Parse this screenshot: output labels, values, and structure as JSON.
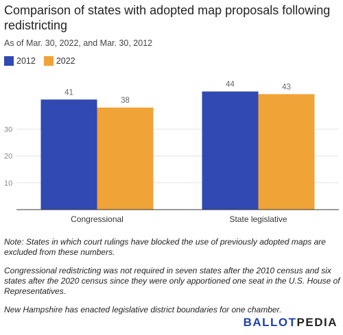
{
  "title": "Comparison of states with adopted map proposals following redistricting",
  "subtitle": "As of Mar. 30, 2022, and Mar. 30, 2012",
  "legend": [
    {
      "label": "2012",
      "color": "#3149b2"
    },
    {
      "label": "2022",
      "color": "#f0a336"
    }
  ],
  "chart_data": {
    "type": "bar",
    "categories": [
      "Congressional",
      "State legislative"
    ],
    "series": [
      {
        "name": "2012",
        "color": "#3149b2",
        "values": [
          41,
          44
        ]
      },
      {
        "name": "2022",
        "color": "#f0a336",
        "values": [
          38,
          43
        ]
      }
    ],
    "yticks": [
      10,
      20,
      30
    ],
    "ylim": [
      0,
      50
    ],
    "grid": true,
    "legend_position": "top-left"
  },
  "notes": [
    "Note: States in which court rulings have blocked the use of previously adopted maps are excluded from these numbers.",
    "Congressional redistricting was not required in seven states after the 2010 census and six states after the 2020 census since they were only apportioned one seat in the U.S. House of Representatives.",
    "New Hampshire has enacted legislative district boundaries for one chamber."
  ],
  "logo": {
    "part1": "BALLOT",
    "part2": "PEDIA"
  }
}
